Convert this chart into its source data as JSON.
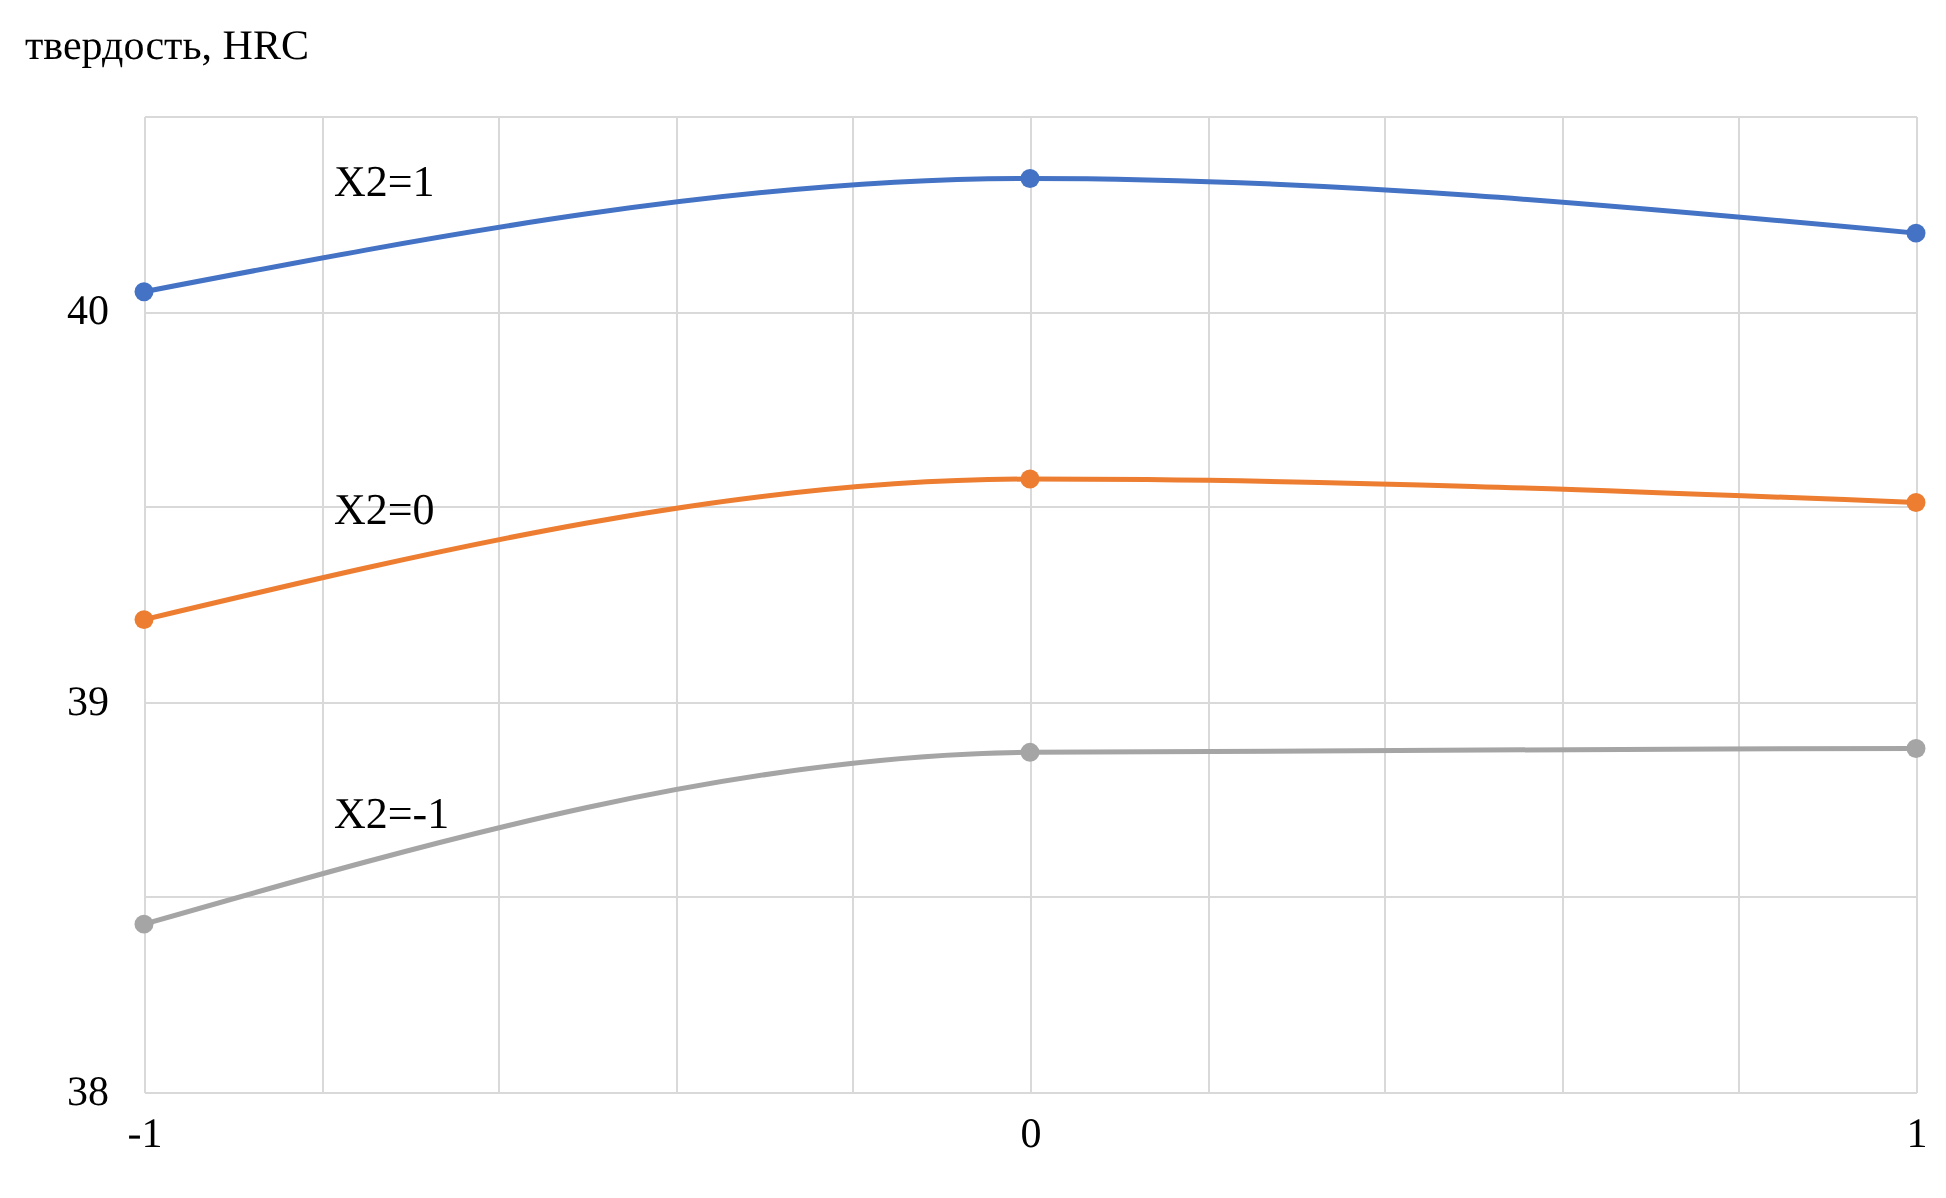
{
  "chart_data": {
    "type": "line",
    "ylabel": "твердость, HRC",
    "x": [
      -1,
      0,
      1
    ],
    "series": [
      {
        "name": "X2=1",
        "color": "#4472c4",
        "values": [
          40.05,
          40.34,
          40.2
        ]
      },
      {
        "name": "X2=0",
        "color": "#ed7d31",
        "values": [
          39.21,
          39.57,
          39.51
        ]
      },
      {
        "name": "X2=-1",
        "color": "#a5a5a5",
        "values": [
          38.43,
          38.87,
          38.88
        ]
      }
    ],
    "xlim": [
      -1,
      1
    ],
    "xticks": [
      -1,
      {
        "value": -0.8,
        "label": null
      },
      {
        "value": -0.6,
        "label": null
      },
      {
        "value": -0.4,
        "label": null
      },
      {
        "value": -0.2,
        "label": null
      },
      0,
      {
        "value": 0.2,
        "label": null
      },
      {
        "value": 0.4,
        "label": null
      },
      {
        "value": 0.6,
        "label": null
      },
      {
        "value": 0.8,
        "label": null
      },
      1
    ],
    "ylim": [
      38,
      40.5
    ],
    "yticks": [
      38,
      {
        "value": 38.5,
        "label": null
      },
      39,
      {
        "value": 39.5,
        "label": null
      },
      40,
      {
        "value": 40.5,
        "label": null
      }
    ],
    "grid": true,
    "marker": "circle",
    "line_style": "solid",
    "legend": false
  }
}
